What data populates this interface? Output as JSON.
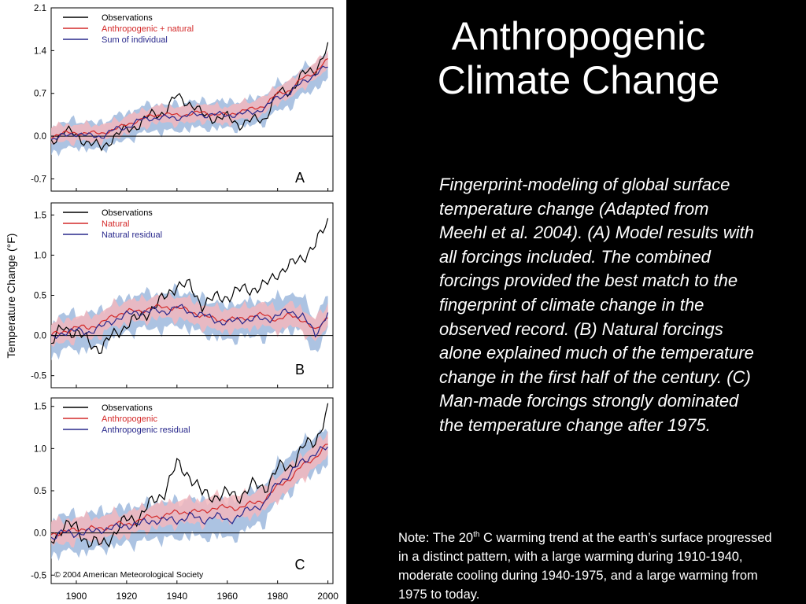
{
  "slide": {
    "title_line1": "Anthropogenic",
    "title_line2": "Climate Change",
    "caption": "Fingerprint-modeling of global surface temperature change (Adapted from Meehl et al. 2004). (A) Model results with all forcings included. The combined forcings provided the best match to the fingerprint of climate change in the observed record. (B) Natural forcings alone explained much of the temperature change in the first half of the century. (C) Man-made forcings strongly dominated the temperature change after 1975.",
    "note_prefix": "Note: The 20",
    "note_sup": "th",
    "note_rest": " C warming trend at the earth’s surface progressed in a distinct pattern, with a large warming during 1910-1940, moderate cooling during 1940-1975, and a large warming from 1975 to today."
  },
  "figure": {
    "ylabel": "Temperature Change (°F)",
    "copyright": "© 2004 American Meteorological Society",
    "x_ticks": [
      "1900",
      "1920",
      "1940",
      "1960",
      "1980",
      "2000"
    ],
    "colors": {
      "observations": "#000000",
      "model": "#d42a2a",
      "residual": "#28288c",
      "band_red": "#f2b7bd",
      "band_blue": "#9db8dd"
    }
  },
  "chart_data": [
    {
      "type": "line",
      "panel": "A",
      "ylim": [
        -0.9,
        2.1
      ],
      "y_ticks": [
        "2.1",
        "1.4",
        "0.7",
        "0.0",
        "-0.7"
      ],
      "y_tick_values": [
        2.1,
        1.4,
        0.7,
        0.0,
        -0.7
      ],
      "xlim": [
        1890,
        2002
      ],
      "legend": [
        "Observations",
        "Anthropogenic + natural",
        "Sum of individual"
      ],
      "x": [
        1890,
        1895,
        1900,
        1905,
        1910,
        1915,
        1920,
        1925,
        1930,
        1935,
        1940,
        1945,
        1950,
        1955,
        1960,
        1965,
        1970,
        1975,
        1980,
        1985,
        1990,
        1995,
        2000
      ],
      "series": [
        {
          "name": "Observations",
          "values": [
            -0.1,
            0.1,
            0.0,
            -0.1,
            -0.2,
            0.0,
            0.1,
            0.2,
            0.35,
            0.4,
            0.65,
            0.55,
            0.35,
            0.3,
            0.3,
            0.2,
            0.25,
            0.3,
            0.7,
            0.75,
            1.0,
            1.1,
            1.45
          ]
        },
        {
          "name": "Anthropogenic + natural",
          "values": [
            0.0,
            0.05,
            0.05,
            0.05,
            0.05,
            0.1,
            0.2,
            0.25,
            0.35,
            0.35,
            0.35,
            0.35,
            0.4,
            0.35,
            0.35,
            0.4,
            0.45,
            0.5,
            0.7,
            0.75,
            0.95,
            1.05,
            1.25
          ]
        },
        {
          "name": "Sum of individual",
          "values": [
            -0.05,
            0.0,
            0.05,
            0.0,
            0.0,
            0.1,
            0.15,
            0.25,
            0.3,
            0.3,
            0.3,
            0.35,
            0.35,
            0.35,
            0.35,
            0.35,
            0.4,
            0.45,
            0.65,
            0.7,
            0.9,
            1.0,
            1.15
          ]
        }
      ]
    },
    {
      "type": "line",
      "panel": "B",
      "ylim": [
        -0.65,
        1.65
      ],
      "y_ticks": [
        "1.5",
        "1.0",
        "0.5",
        "0.0",
        "-0.5"
      ],
      "y_tick_values": [
        1.5,
        1.0,
        0.5,
        0.0,
        -0.5
      ],
      "xlim": [
        1890,
        2002
      ],
      "legend": [
        "Observations",
        "Natural",
        "Natural residual"
      ],
      "x": [
        1890,
        1895,
        1900,
        1905,
        1910,
        1915,
        1920,
        1925,
        1930,
        1935,
        1940,
        1945,
        1950,
        1955,
        1960,
        1965,
        1970,
        1975,
        1980,
        1985,
        1990,
        1995,
        2000
      ],
      "series": [
        {
          "name": "Observations",
          "values": [
            -0.1,
            0.1,
            0.05,
            -0.1,
            -0.15,
            0.0,
            0.15,
            0.2,
            0.35,
            0.45,
            0.65,
            0.6,
            0.4,
            0.45,
            0.5,
            0.55,
            0.6,
            0.6,
            0.8,
            0.85,
            1.0,
            1.1,
            1.45
          ]
        },
        {
          "name": "Natural",
          "values": [
            0.0,
            0.05,
            0.1,
            0.1,
            0.15,
            0.25,
            0.3,
            0.3,
            0.35,
            0.35,
            0.35,
            0.3,
            0.25,
            0.2,
            0.2,
            0.2,
            0.25,
            0.25,
            0.2,
            0.25,
            0.2,
            0.05,
            0.25
          ]
        },
        {
          "name": "Natural residual",
          "values": [
            -0.05,
            0.05,
            0.05,
            0.05,
            0.1,
            0.2,
            0.25,
            0.3,
            0.3,
            0.3,
            0.35,
            0.3,
            0.25,
            0.2,
            0.15,
            0.2,
            0.2,
            0.2,
            0.25,
            0.3,
            0.25,
            0.0,
            0.3
          ]
        }
      ]
    },
    {
      "type": "line",
      "panel": "C",
      "ylim": [
        -0.6,
        1.6
      ],
      "y_ticks": [
        "1.5",
        "1.0",
        "0.5",
        "0.0",
        "-0.5"
      ],
      "y_tick_values": [
        1.5,
        1.0,
        0.5,
        0.0,
        -0.5
      ],
      "xlim": [
        1890,
        2002
      ],
      "legend": [
        "Observations",
        "Anthropogenic",
        "Anthropogenic residual"
      ],
      "x": [
        1890,
        1895,
        1900,
        1905,
        1910,
        1915,
        1920,
        1925,
        1930,
        1935,
        1940,
        1945,
        1950,
        1955,
        1960,
        1965,
        1970,
        1975,
        1980,
        1985,
        1990,
        1995,
        2000
      ],
      "series": [
        {
          "name": "Observations",
          "values": [
            -0.1,
            0.1,
            0.05,
            -0.1,
            -0.15,
            0.0,
            0.15,
            0.2,
            0.35,
            0.5,
            0.8,
            0.7,
            0.45,
            0.45,
            0.45,
            0.45,
            0.55,
            0.55,
            0.75,
            0.8,
            1.0,
            1.1,
            1.45
          ]
        },
        {
          "name": "Anthropogenic",
          "values": [
            0.0,
            0.0,
            0.05,
            0.05,
            0.05,
            0.1,
            0.1,
            0.15,
            0.2,
            0.2,
            0.25,
            0.25,
            0.25,
            0.3,
            0.3,
            0.3,
            0.35,
            0.4,
            0.55,
            0.65,
            0.8,
            0.9,
            1.05
          ]
        },
        {
          "name": "Anthropogenic residual",
          "values": [
            -0.05,
            0.0,
            0.0,
            0.0,
            0.05,
            0.05,
            0.1,
            0.1,
            0.15,
            0.15,
            0.15,
            0.2,
            0.15,
            0.2,
            0.15,
            0.2,
            0.3,
            0.35,
            0.6,
            0.7,
            0.85,
            0.95,
            1.0
          ]
        }
      ]
    }
  ]
}
